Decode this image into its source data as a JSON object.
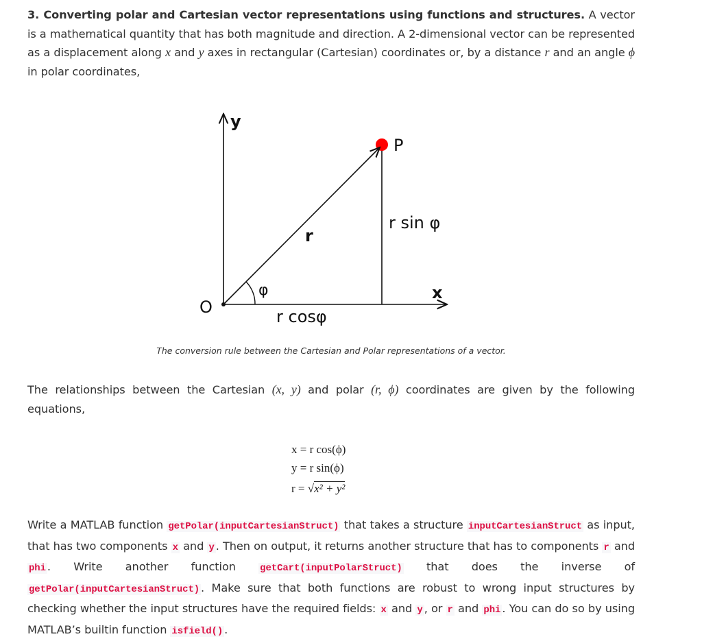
{
  "intro": {
    "heading": "3. Converting polar and Cartesian vector representations using functions and structures.",
    "t1": " A vector is a mathematical quantity that has both magnitude and direction. A 2-dimensional vector can be represented as a displacement along ",
    "x": "x",
    "t2": " and ",
    "y": "y",
    "t3": " axes in rectangular (Cartesian) coordinates or, by a distance ",
    "r": "r",
    "t4": " and an angle ",
    "phi": "ϕ",
    "t5": " in polar coordinates,"
  },
  "figure": {
    "labels": {
      "y": "y",
      "x": "x",
      "origin": "O",
      "point": "P",
      "r": "r",
      "phi": "φ",
      "rsin": "r sin φ",
      "rcos": "r cosφ"
    },
    "point_color": "#ff0000",
    "caption": "The conversion rule between the Cartesian and Polar representations of a vector."
  },
  "relations": {
    "t1": "The relationships between the Cartesian ",
    "cart": "(x, y)",
    "t2": " and polar ",
    "polar": "(r, ϕ)",
    "t3": " coordinates are given by the following equations,"
  },
  "equations": {
    "eq1": "x = r cos(ϕ)",
    "eq2": "y = r sin(ϕ)",
    "eq3_lhs": "r = ",
    "eq3_rad": "x² + y²"
  },
  "task": {
    "t1": "Write a MATLAB function ",
    "c1": "getPolar(inputCartesianStruct)",
    "t2": " that takes a structure ",
    "c2": "inputCartesianStruct",
    "t3": " as input, that has two components ",
    "c3": "x",
    "t4": " and ",
    "c4": "y",
    "t5": ". Then on output, it returns another structure that has to components ",
    "c5": "r",
    "t6": " and ",
    "c6": "phi",
    "t7": ". Write another function ",
    "c7": "getCart(inputPolarStruct)",
    "t8": " that does the inverse of ",
    "c8": "getPolar(inputCartesianStruct)",
    "t9": ". Make sure that both functions are robust to wrong input structures by checking whether the input structures have the required fields: ",
    "c9": "x",
    "t10": " and ",
    "c10": "y",
    "t11": ", or ",
    "c11": "r",
    "t12": " and ",
    "c12": "phi",
    "t13": ". You can do so by using MATLAB’s builtin function ",
    "c13": "isfield()",
    "t14": "."
  },
  "colors": {
    "code": "#dd1144",
    "code_bg": "#f7f7f9"
  }
}
